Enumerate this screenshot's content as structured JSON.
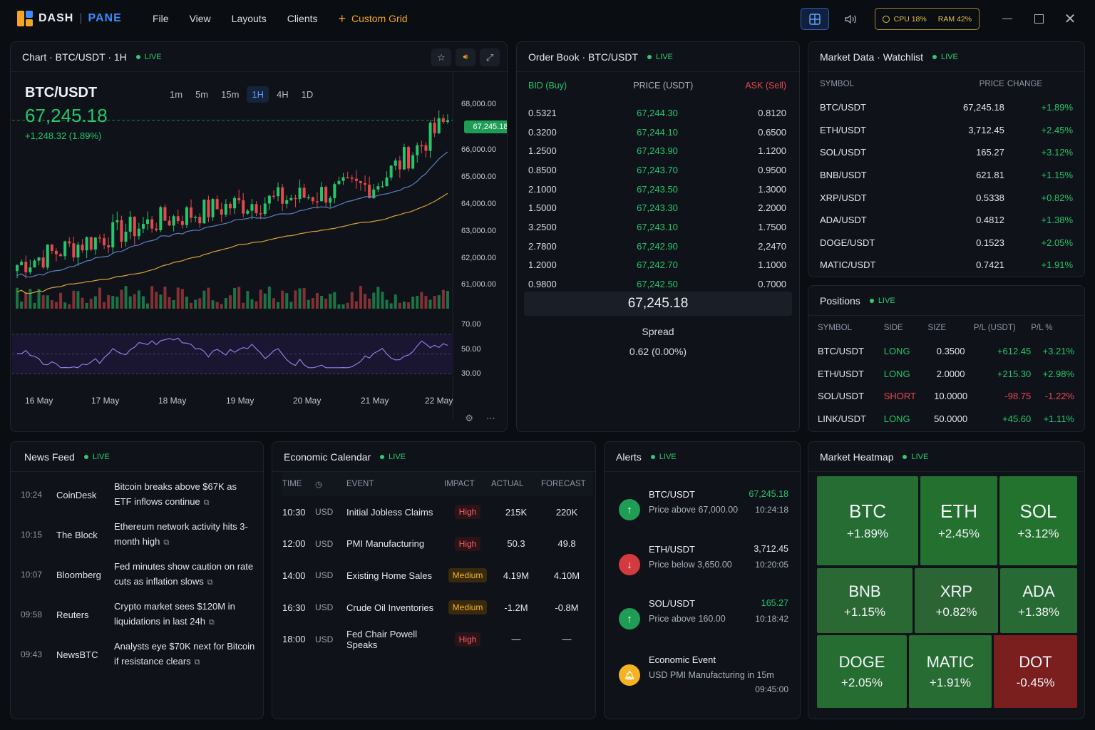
{
  "app": {
    "name_a": "DASH",
    "sep": "|",
    "name_b": "PANE"
  },
  "menu": [
    "File",
    "View",
    "Layouts",
    "Clients"
  ],
  "custom_grid": "Custom Grid",
  "system": {
    "cpu": "CPU 18%",
    "ram": "RAM 42%"
  },
  "chart": {
    "title": "Chart · BTC/USDT · 1H",
    "live": "LIVE",
    "symbol": "BTC/USDT",
    "price": "67,245.18",
    "change": "+1,248.32 (1.89%)",
    "timeframes": [
      "1m",
      "5m",
      "15m",
      "1H",
      "4H",
      "1D"
    ],
    "selected_timeframe": "1H",
    "price_ticks": [
      "68,000.00",
      "66,000.00",
      "65,000.00",
      "64,000.00",
      "63,000.00",
      "62,000.00",
      "61,000.00"
    ],
    "current_tag": "67,245.18",
    "rsi_ticks": [
      "70.00",
      "50.00",
      "30.00"
    ],
    "dates": [
      "16 May",
      "17 May",
      "18 May",
      "19 May",
      "20 May",
      "21 May",
      "22 May"
    ]
  },
  "chart_data": {
    "type": "line",
    "x": [
      "16 May",
      "17 May",
      "18 May",
      "19 May",
      "20 May",
      "21 May",
      "22 May"
    ],
    "series": [
      {
        "values": [
          62400,
          63200,
          63900,
          64400,
          64700,
          65100,
          67245.18
        ]
      }
    ],
    "ylim": [
      60500,
      68200
    ],
    "rsi_ylim": [
      25,
      80
    ]
  },
  "orderbook": {
    "title": "Order Book · BTC/USDT",
    "live": "LIVE",
    "headers": {
      "bid": "BID (Buy)",
      "price": "PRICE (USDT)",
      "ask": "ASK (Sell)"
    },
    "rows": [
      {
        "bid": "0.5321",
        "price": "67,244.30",
        "ask": "0.8120"
      },
      {
        "bid": "0.3200",
        "price": "67,244.10",
        "ask": "0.6500"
      },
      {
        "bid": "1.2500",
        "price": "67,243.90",
        "ask": "1.1200"
      },
      {
        "bid": "0.8500",
        "price": "67,243.70",
        "ask": "0.9500"
      },
      {
        "bid": "2.1000",
        "price": "67,243.50",
        "ask": "1.3000"
      },
      {
        "bid": "1.5000",
        "price": "67,243.30",
        "ask": "2.2000"
      },
      {
        "bid": "3.2500",
        "price": "67,243.10",
        "ask": "1.7500"
      },
      {
        "bid": "2.7800",
        "price": "67,242.90",
        "ask": "2,2470"
      },
      {
        "bid": "1.2000",
        "price": "67,242.70",
        "ask": "1.1000"
      },
      {
        "bid": "0.9800",
        "price": "67,242.50",
        "ask": "0.7000"
      }
    ],
    "mid": "67,245.18",
    "spread_label": "Spread",
    "spread_value": "0.62 (0.00%)"
  },
  "watchlist": {
    "title": "Market Data · Watchlist",
    "live": "LIVE",
    "headers": [
      "SYMBOL",
      "PRICE",
      "CHANGE"
    ],
    "rows": [
      {
        "symbol": "BTC/USDT",
        "price": "67,245.18",
        "change": "+1.89%"
      },
      {
        "symbol": "ETH/USDT",
        "price": "3,712.45",
        "change": "+2.45%"
      },
      {
        "symbol": "SOL/USDT",
        "price": "165.27",
        "change": "+3.12%"
      },
      {
        "symbol": "BNB/USDT",
        "price": "621.81",
        "change": "+1.15%"
      },
      {
        "symbol": "XRP/USDT",
        "price": "0.5338",
        "change": "+0.82%"
      },
      {
        "symbol": "ADA/USDT",
        "price": "0.4812",
        "change": "+1.38%"
      },
      {
        "symbol": "DOGE/USDT",
        "price": "0.1523",
        "change": "+2.05%"
      },
      {
        "symbol": "MATIC/USDT",
        "price": "0.7421",
        "change": "+1.91%"
      }
    ]
  },
  "positions": {
    "title": "Positions",
    "live": "LIVE",
    "headers": [
      "SYMBOL",
      "SIDE",
      "SIZE",
      "P/L (USDT)",
      "P/L %"
    ],
    "rows": [
      {
        "symbol": "BTC/USDT",
        "side": "LONG",
        "size": "0.3500",
        "pl": "+612.45",
        "plp": "+3.21%"
      },
      {
        "symbol": "ETH/USDT",
        "side": "LONG",
        "size": "2.0000",
        "pl": "+215.30",
        "plp": "+2.98%"
      },
      {
        "symbol": "SOL/USDT",
        "side": "SHORT",
        "size": "10.0000",
        "pl": "-98.75",
        "plp": "-1.22%"
      },
      {
        "symbol": "LINK/USDT",
        "side": "LONG",
        "size": "50.0000",
        "pl": "+45.60",
        "plp": "+1.11%"
      }
    ]
  },
  "news": {
    "title": "News Feed",
    "live": "LIVE",
    "items": [
      {
        "time": "10:24",
        "source": "CoinDesk",
        "headline": "Bitcoin breaks above $67K as ETF inflows continue"
      },
      {
        "time": "10:15",
        "source": "The Block",
        "headline": "Ethereum network activity hits 3-month high"
      },
      {
        "time": "10:07",
        "source": "Bloomberg",
        "headline": "Fed minutes show caution on rate cuts as inflation slows"
      },
      {
        "time": "09:58",
        "source": "Reuters",
        "headline": "Crypto market sees $120M in liquidations in last 24h"
      },
      {
        "time": "09:43",
        "source": "NewsBTC",
        "headline": "Analysts eye $70K next for Bitcoin if resistance clears"
      }
    ]
  },
  "calendar": {
    "title": "Economic Calendar",
    "live": "LIVE",
    "headers": [
      "TIME",
      "EVENT",
      "IMPACT",
      "ACTUAL",
      "FORECAST"
    ],
    "rows": [
      {
        "time": "10:30",
        "cur": "USD",
        "event": "Initial Jobless Claims",
        "impact": "High",
        "actual": "215K",
        "forecast": "220K"
      },
      {
        "time": "12:00",
        "cur": "USD",
        "event": "PMI Manufacturing",
        "impact": "High",
        "actual": "50.3",
        "forecast": "49.8"
      },
      {
        "time": "14:00",
        "cur": "USD",
        "event": "Existing Home Sales",
        "impact": "Medium",
        "actual": "4.19M",
        "forecast": "4.10M"
      },
      {
        "time": "16:30",
        "cur": "USD",
        "event": "Crude Oil Inventories",
        "impact": "Medium",
        "actual": "-1.2M",
        "forecast": "-0.8M"
      },
      {
        "time": "18:00",
        "cur": "USD",
        "event": "Fed Chair Powell Speaks",
        "impact": "High",
        "actual": "—",
        "forecast": "—"
      }
    ]
  },
  "alerts": {
    "title": "Alerts",
    "live": "LIVE",
    "items": [
      {
        "symbol": "BTC/USDT",
        "desc": "Price above 67,000.00",
        "value": "67,245.18",
        "time": "10:24:18"
      },
      {
        "symbol": "ETH/USDT",
        "desc": "Price below 3,650.00",
        "value": "3,712.45",
        "time": "10:20:05"
      },
      {
        "symbol": "SOL/USDT",
        "desc": "Price above 160.00",
        "value": "165.27",
        "time": "10:18:42"
      },
      {
        "symbol": "Economic Event",
        "desc": "USD PMI Manufacturing in 15m",
        "value": "",
        "time": "09:45:00"
      }
    ]
  },
  "heatmap": {
    "title": "Market Heatmap",
    "live": "LIVE",
    "tiles": [
      {
        "name": "BTC",
        "value": "+1.89%",
        "color": "#256d33"
      },
      {
        "name": "ETH",
        "value": "+2.45%",
        "color": "#23702f"
      },
      {
        "name": "SOL",
        "value": "+3.12%",
        "color": "#23722e"
      },
      {
        "name": "BNB",
        "value": "+1.15%",
        "color": "#2b6934"
      },
      {
        "name": "XRP",
        "value": "+0.82%",
        "color": "#2c6534"
      },
      {
        "name": "ADA",
        "value": "+1.38%",
        "color": "#286a33"
      },
      {
        "name": "DOGE",
        "value": "+2.05%",
        "color": "#256d31"
      },
      {
        "name": "MATIC",
        "value": "+1.91%",
        "color": "#276c33"
      },
      {
        "name": "DOT",
        "value": "-0.45%",
        "color": "#7a1e1e"
      }
    ]
  },
  "colors": {
    "up": "#27c56b",
    "down": "#e5484d",
    "accent": "#3d8bfd",
    "warn": "#f5a524"
  }
}
